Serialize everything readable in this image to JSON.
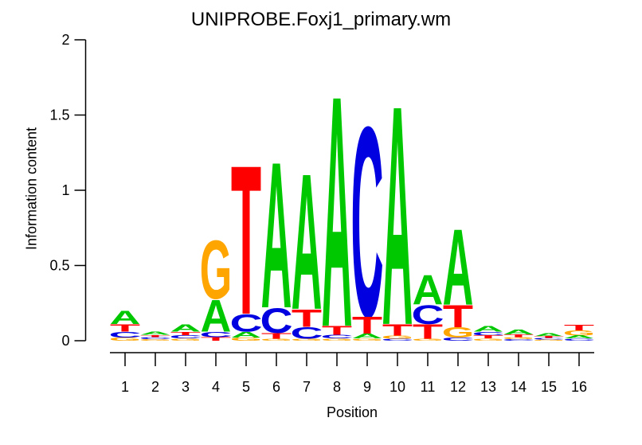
{
  "chart_data": {
    "type": "sequence_logo",
    "title": "UNIPROBE.Foxj1_primary.wm",
    "xlabel": "Position",
    "ylabel": "Information content",
    "ylim": [
      0,
      2
    ],
    "xlim": [
      1,
      16
    ],
    "grid": false,
    "legend": null,
    "yticks": [
      {
        "value": 0,
        "label": "0"
      },
      {
        "value": 0.5,
        "label": "0.5"
      },
      {
        "value": 1,
        "label": "1"
      },
      {
        "value": 1.5,
        "label": "1.5"
      },
      {
        "value": 2,
        "label": "2"
      }
    ],
    "base_colors": {
      "A": "#00C800",
      "C": "#0000E0",
      "G": "#FFA500",
      "T": "#FF0000"
    },
    "positions": [
      {
        "position": 1,
        "stack": [
          {
            "base": "A",
            "bits": 0.09
          },
          {
            "base": "T",
            "bits": 0.05
          },
          {
            "base": "C",
            "bits": 0.04
          },
          {
            "base": "G",
            "bits": 0.02
          }
        ]
      },
      {
        "position": 2,
        "stack": [
          {
            "base": "A",
            "bits": 0.02
          },
          {
            "base": "T",
            "bits": 0.015
          },
          {
            "base": "C",
            "bits": 0.015
          },
          {
            "base": "G",
            "bits": 0.01
          }
        ]
      },
      {
        "position": 3,
        "stack": [
          {
            "base": "A",
            "bits": 0.05
          },
          {
            "base": "T",
            "bits": 0.025
          },
          {
            "base": "C",
            "bits": 0.02
          },
          {
            "base": "G",
            "bits": 0.015
          }
        ]
      },
      {
        "position": 4,
        "stack": [
          {
            "base": "G",
            "bits": 0.4
          },
          {
            "base": "A",
            "bits": 0.22
          },
          {
            "base": "C",
            "bits": 0.035
          },
          {
            "base": "T",
            "bits": 0.025
          }
        ]
      },
      {
        "position": 5,
        "stack": [
          {
            "base": "T",
            "bits": 1.02
          },
          {
            "base": "C",
            "bits": 0.12
          },
          {
            "base": "A",
            "bits": 0.04
          },
          {
            "base": "G",
            "bits": 0.02
          }
        ]
      },
      {
        "position": 6,
        "stack": [
          {
            "base": "A",
            "bits": 1.0
          },
          {
            "base": "C",
            "bits": 0.17
          },
          {
            "base": "T",
            "bits": 0.04
          },
          {
            "base": "G",
            "bits": 0.012
          }
        ]
      },
      {
        "position": 7,
        "stack": [
          {
            "base": "A",
            "bits": 0.93
          },
          {
            "base": "T",
            "bits": 0.12
          },
          {
            "base": "C",
            "bits": 0.08
          },
          {
            "base": "G",
            "bits": 0.012
          }
        ]
      },
      {
        "position": 8,
        "stack": [
          {
            "base": "A",
            "bits": 1.58
          },
          {
            "base": "T",
            "bits": 0.06
          },
          {
            "base": "C",
            "bits": 0.025
          },
          {
            "base": "G",
            "bits": 0.015
          }
        ]
      },
      {
        "position": 9,
        "stack": [
          {
            "base": "C",
            "bits": 1.3
          },
          {
            "base": "T",
            "bits": 0.12
          },
          {
            "base": "A",
            "bits": 0.03
          },
          {
            "base": "G",
            "bits": 0.015
          }
        ]
      },
      {
        "position": 10,
        "stack": [
          {
            "base": "A",
            "bits": 1.5
          },
          {
            "base": "T",
            "bits": 0.08
          },
          {
            "base": "G",
            "bits": 0.02
          },
          {
            "base": "C",
            "bits": 0.012
          }
        ]
      },
      {
        "position": 11,
        "stack": [
          {
            "base": "A",
            "bits": 0.2
          },
          {
            "base": "C",
            "bits": 0.13
          },
          {
            "base": "T",
            "bits": 0.1
          },
          {
            "base": "G",
            "bits": 0.012
          }
        ]
      },
      {
        "position": 12,
        "stack": [
          {
            "base": "A",
            "bits": 0.52
          },
          {
            "base": "T",
            "bits": 0.15
          },
          {
            "base": "G",
            "bits": 0.07
          },
          {
            "base": "C",
            "bits": 0.02
          }
        ]
      },
      {
        "position": 13,
        "stack": [
          {
            "base": "A",
            "bits": 0.04
          },
          {
            "base": "C",
            "bits": 0.025
          },
          {
            "base": "T",
            "bits": 0.02
          },
          {
            "base": "G",
            "bits": 0.015
          }
        ]
      },
      {
        "position": 14,
        "stack": [
          {
            "base": "A",
            "bits": 0.03
          },
          {
            "base": "T",
            "bits": 0.02
          },
          {
            "base": "G",
            "bits": 0.012
          },
          {
            "base": "C",
            "bits": 0.01
          }
        ]
      },
      {
        "position": 15,
        "stack": [
          {
            "base": "A",
            "bits": 0.02
          },
          {
            "base": "T",
            "bits": 0.012
          },
          {
            "base": "C",
            "bits": 0.01
          },
          {
            "base": "G",
            "bits": 0.008
          }
        ]
      },
      {
        "position": 16,
        "stack": [
          {
            "base": "T",
            "bits": 0.04
          },
          {
            "base": "G",
            "bits": 0.035
          },
          {
            "base": "A",
            "bits": 0.02
          },
          {
            "base": "C",
            "bits": 0.015
          }
        ]
      }
    ]
  }
}
